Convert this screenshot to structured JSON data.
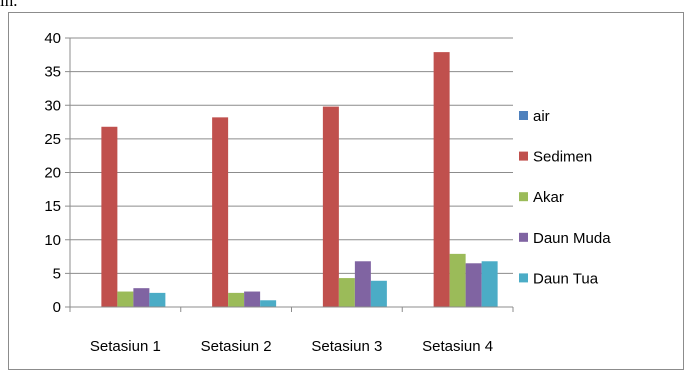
{
  "page_fragment": "ın.",
  "chart_data": {
    "type": "bar",
    "title": "",
    "xlabel": "",
    "ylabel": "",
    "categories": [
      "Setasiun 1",
      "Setasiun 2",
      "Setasiun 3",
      "Setasiun 4"
    ],
    "ylim": [
      0,
      40
    ],
    "yticks": [
      0,
      5,
      10,
      15,
      20,
      25,
      30,
      35,
      40
    ],
    "grid": true,
    "legend_position": "right",
    "series": [
      {
        "name": "air",
        "color": "#4f81bd",
        "values": [
          0,
          0,
          0,
          0
        ]
      },
      {
        "name": "Sedimen",
        "color": "#c0504d",
        "values": [
          26.8,
          28.2,
          29.8,
          37.9
        ]
      },
      {
        "name": "Akar",
        "color": "#9bbb59",
        "values": [
          2.3,
          2.1,
          4.3,
          7.9
        ]
      },
      {
        "name": "Daun Muda",
        "color": "#8064a2",
        "values": [
          2.8,
          2.3,
          6.8,
          6.5
        ]
      },
      {
        "name": "Daun Tua",
        "color": "#4bacc6",
        "values": [
          2.1,
          1.0,
          3.9,
          6.8
        ]
      }
    ]
  }
}
